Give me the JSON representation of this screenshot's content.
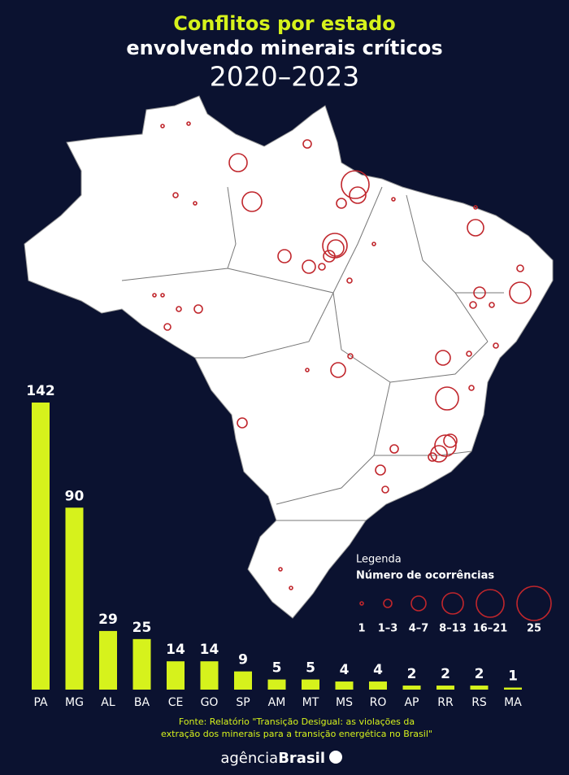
{
  "chart_data": {
    "type": "bar",
    "title": "Conflitos por  estado",
    "subtitle": "envolvendo minerais críticos",
    "period": "2020–2023",
    "categories": [
      "PA",
      "MG",
      "AL",
      "BA",
      "CE",
      "GO",
      "SP",
      "AM",
      "MT",
      "MS",
      "RO",
      "AP",
      "RR",
      "RS",
      "MA"
    ],
    "values": [
      142,
      90,
      29,
      25,
      14,
      14,
      9,
      5,
      5,
      4,
      4,
      2,
      2,
      2,
      1
    ],
    "color": "#d6f21c"
  },
  "legend": {
    "title": "Legenda",
    "subtitle": "Número de ocorrências",
    "labels": [
      "1",
      "1–3",
      "4–7",
      "8–13",
      "16–21",
      "25"
    ]
  },
  "source": [
    "Fonte: Relatório \"Transição Desigual: as violações da",
    "extração dos minerais para a transição energética no Brasil\""
  ],
  "credit": {
    "agencia": "agência",
    "brasil": "Brasil"
  }
}
